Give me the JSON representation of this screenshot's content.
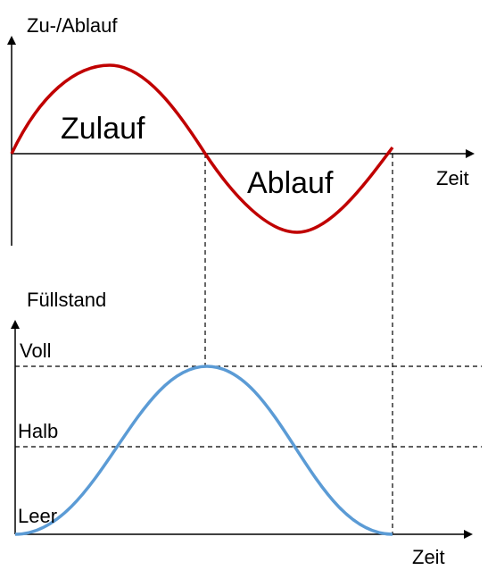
{
  "top": {
    "axis_label": "Zu-/Ablauf",
    "inflow_label": "Zulauf",
    "outflow_label": "Ablauf",
    "time_label": "Zeit"
  },
  "bottom": {
    "axis_label": "Füllstand",
    "levels": [
      "Voll",
      "Halb",
      "Leer"
    ],
    "time_label": "Zeit"
  }
}
